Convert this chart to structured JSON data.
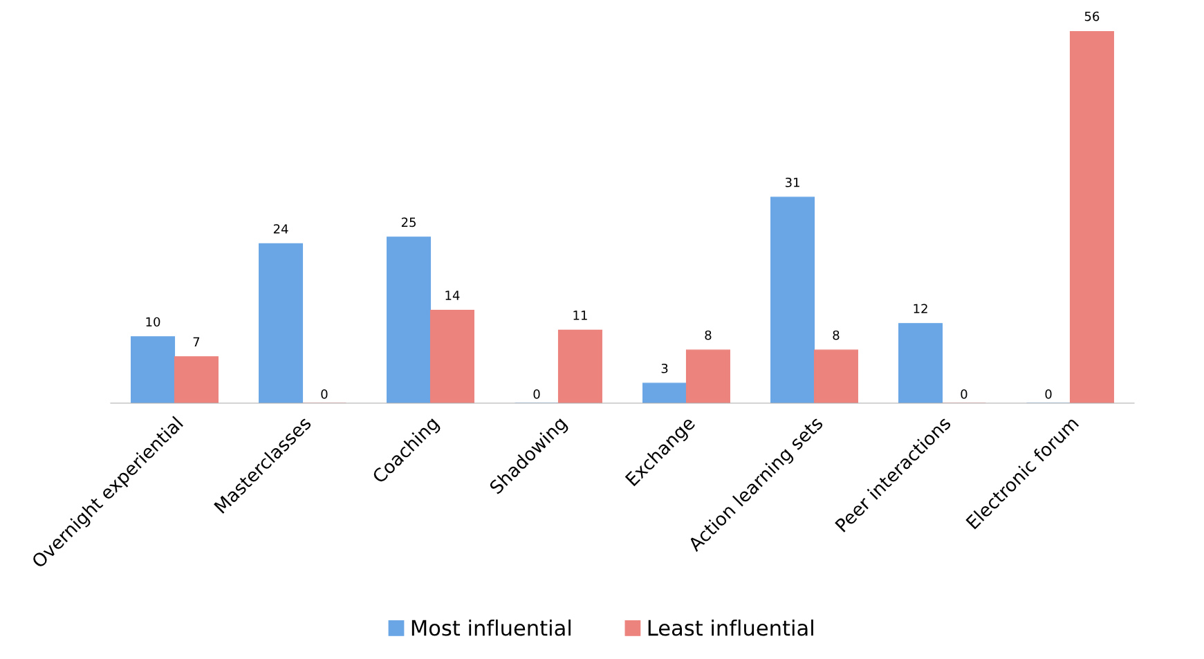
{
  "chart_data": {
    "type": "bar",
    "categories": [
      "Overnight experiential",
      "Masterclasses",
      "Coaching",
      "Shadowing",
      "Exchange",
      "Action learning sets",
      "Peer interactions",
      "Electronic forum"
    ],
    "series": [
      {
        "name": "Most influential",
        "color": "#6aa6e6",
        "values": [
          10,
          24,
          25,
          0,
          3,
          31,
          12,
          0
        ]
      },
      {
        "name": "Least influential",
        "color": "#ec837d",
        "values": [
          7,
          0,
          14,
          11,
          8,
          8,
          0,
          56
        ]
      }
    ],
    "data_labels": true,
    "legend": "bottom",
    "grid": false,
    "tick_labels": "x"
  }
}
